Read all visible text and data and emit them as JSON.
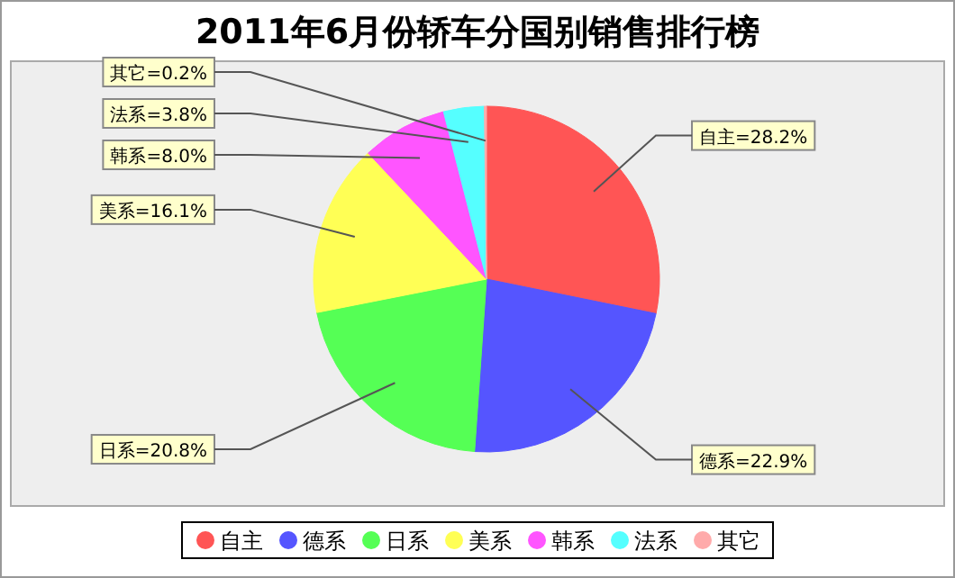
{
  "chart_data": {
    "type": "pie",
    "title": "2011年6月份轿车分国别销售排行榜",
    "categories": [
      "自主",
      "德系",
      "日系",
      "美系",
      "韩系",
      "法系",
      "其它"
    ],
    "values": [
      28.2,
      22.9,
      20.8,
      16.1,
      8.0,
      3.8,
      0.2
    ],
    "value_labels": [
      "自主=28.2%",
      "德系=22.9%",
      "日系=20.8%",
      "美系=16.1%",
      "韩系=8.0%",
      "法系=3.8%",
      "其它=0.2%"
    ],
    "colors": [
      "#ff5555",
      "#5555ff",
      "#55ff55",
      "#ffff55",
      "#ff55ff",
      "#55ffff",
      "#ffaaaa"
    ],
    "legend": "bottom"
  }
}
